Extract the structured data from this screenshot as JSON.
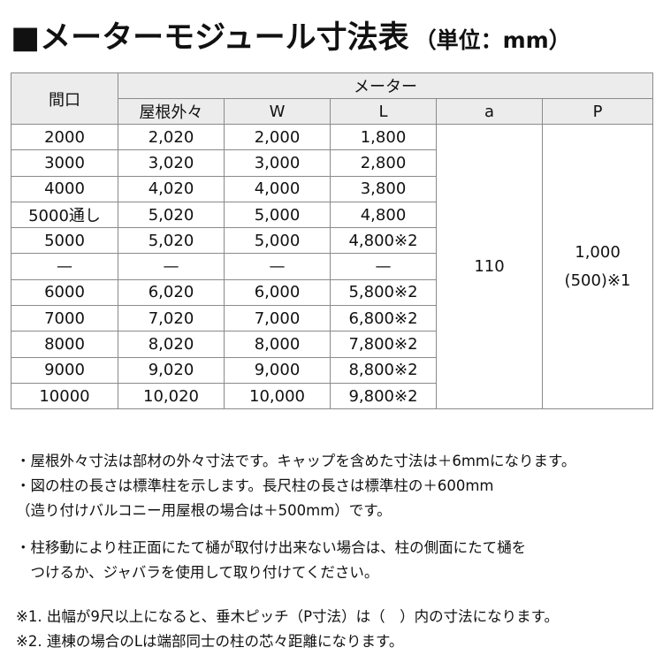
{
  "title": {
    "main": "■メーターモジュール寸法表",
    "unit": "（単位：mm）"
  },
  "table": {
    "header_frontage": "間口",
    "header_group": "メーター",
    "columns": [
      "屋根外々",
      "W",
      "L",
      "a",
      "P"
    ],
    "rows": [
      [
        "2000",
        "2,020",
        "2,000",
        "1,800"
      ],
      [
        "3000",
        "3,020",
        "3,000",
        "2,800"
      ],
      [
        "4000",
        "4,020",
        "4,000",
        "3,800"
      ],
      [
        "5000通し",
        "5,020",
        "5,000",
        "4,800"
      ],
      [
        "5000",
        "5,020",
        "5,000",
        "4,800※2"
      ],
      [
        "—",
        "—",
        "—",
        "—"
      ],
      [
        "6000",
        "6,020",
        "6,000",
        "5,800※2"
      ],
      [
        "7000",
        "7,020",
        "7,000",
        "6,800※2"
      ],
      [
        "8000",
        "8,020",
        "8,000",
        "7,800※2"
      ],
      [
        "9000",
        "9,020",
        "9,000",
        "8,800※2"
      ],
      [
        "10000",
        "10,020",
        "10,000",
        "9,800※2"
      ]
    ],
    "a_value": "110",
    "p_value_line1": "1,000",
    "p_value_line2": "(500)※1"
  },
  "notes": [
    "・屋根外々寸法は部材の外々寸法です。キャップを含めた寸法は＋6mmになります。",
    "・図の柱の長さは標準柱を示します。長尺柱の長さは標準柱の＋600mm",
    "（造り付けバルコニー用屋根の場合は＋500mm）です。",
    "・柱移動により柱正面にたて樋が取付け出来ない場合は、柱の側面にたて樋を",
    "　つけるか、ジャバラを使用して取り付けてください。"
  ],
  "footnotes": [
    "※1. 出幅が9尺以上になると、垂木ピッチ（P寸法）は（　）内の寸法になります。",
    "※2. 連棟の場合のLは端部同士の柱の芯々距離になります。"
  ]
}
